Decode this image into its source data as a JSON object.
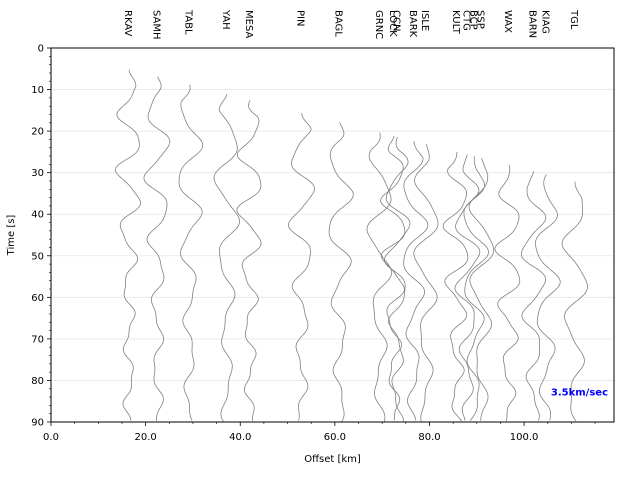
{
  "chart_data": {
    "type": "line",
    "title": "",
    "xlabel": "Offset [km]",
    "ylabel": "Time [s]",
    "xlim": [
      0,
      119
    ],
    "ylim": [
      90,
      0
    ],
    "y_axis_inverted": true,
    "x_ticks": [
      0,
      20,
      40,
      60,
      80,
      100
    ],
    "x_tick_labels": [
      "0.0",
      "20.0",
      "40.0",
      "60.0",
      "80.0",
      "100.0"
    ],
    "x_minor_step": 5,
    "y_ticks": [
      0,
      10,
      20,
      30,
      40,
      50,
      60,
      70,
      80,
      90
    ],
    "y_tick_labels": [
      "0",
      "10",
      "20",
      "30",
      "40",
      "50",
      "60",
      "70",
      "80",
      "90"
    ],
    "y_minor_step": 2,
    "grid": "horizontal",
    "trace_color": "#808080",
    "annotation_color": "#0000ff",
    "annotation": "3.5km/sec",
    "stations": [
      {
        "name": "RKAV",
        "offset": 16.5
      },
      {
        "name": "SAMH",
        "offset": 22.5
      },
      {
        "name": "TABL",
        "offset": 29.3
      },
      {
        "name": "YAH",
        "offset": 37.2
      },
      {
        "name": "MESA",
        "offset": 42.1
      },
      {
        "name": "PIN",
        "offset": 53.0
      },
      {
        "name": "BAGL",
        "offset": 61.0
      },
      {
        "name": "GRNC",
        "offset": 69.5
      },
      {
        "name": "LOCK",
        "offset": 72.5
      },
      {
        "name": "CCN",
        "offset": 73.2
      },
      {
        "name": "BARK",
        "offset": 76.7
      },
      {
        "name": "ISLE",
        "offset": 79.3
      },
      {
        "name": "KULT",
        "offset": 85.8
      },
      {
        "name": "CTG",
        "offset": 88.0
      },
      {
        "name": "BCP",
        "offset": 89.5
      },
      {
        "name": "SSP",
        "offset": 91.0
      },
      {
        "name": "WAX",
        "offset": 96.8
      },
      {
        "name": "BARN",
        "offset": 102.0
      },
      {
        "name": "KIAG",
        "offset": 104.7
      },
      {
        "name": "TGL",
        "offset": 110.8
      }
    ]
  }
}
